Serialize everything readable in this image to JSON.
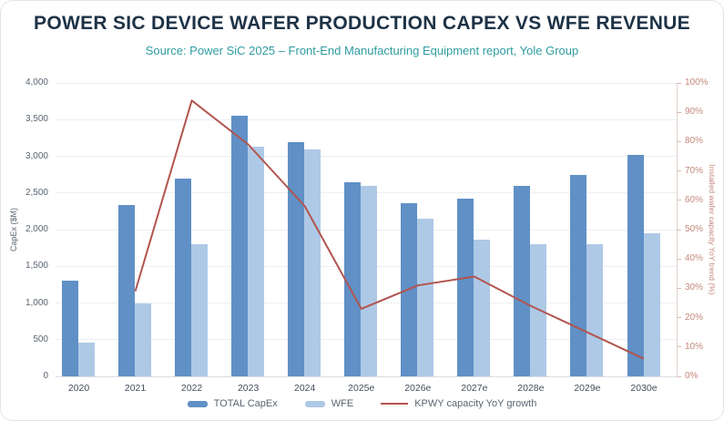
{
  "header": {
    "title": "POWER SIC DEVICE WAFER PRODUCTION CAPEX VS WFE REVENUE",
    "subtitle": "Source: Power SiC 2025 – Front-End Manufacturing Equipment report, Yole Group"
  },
  "colors": {
    "title_text": "#1d3245",
    "subtitle_text": "#2e9ca1",
    "total_capex_bar": "#6090c6",
    "wfe_bar": "#aec9e6",
    "growth_line": "#b2544e",
    "left_axis_text": "#5a6572",
    "right_axis_text": "#c4877b",
    "gridline": "#eceff3",
    "baseline": "#d9dde3"
  },
  "chart_data": {
    "type": "bar",
    "subtype": "combo bar + line, dual axis",
    "title": "POWER SIC DEVICE WAFER PRODUCTION CAPEX VS WFE REVENUE",
    "categories": [
      "2020",
      "2021",
      "2022",
      "2023",
      "2024",
      "2025e",
      "2026e",
      "2027e",
      "2028e",
      "2029e",
      "2030e"
    ],
    "series": [
      {
        "name": "TOTAL CapEx",
        "type": "bar",
        "axis": "left",
        "color": "#6090c6",
        "values": [
          1300,
          2330,
          2700,
          3550,
          3190,
          2645,
          2360,
          2420,
          2600,
          2745,
          3020
        ]
      },
      {
        "name": "WFE",
        "type": "bar",
        "axis": "left",
        "color": "#aec9e6",
        "values": [
          460,
          1000,
          1800,
          3130,
          3090,
          2600,
          2150,
          1865,
          1800,
          1800,
          1950
        ]
      },
      {
        "name": "KPWY capacity YoY growth",
        "type": "line",
        "axis": "right",
        "color": "#b2544e",
        "values": [
          null,
          29,
          94,
          79,
          58,
          23,
          31,
          34,
          24,
          15,
          6
        ]
      }
    ],
    "left_axis": {
      "label": "CapEx ($M)",
      "min": 0,
      "max": 4000,
      "step": 500,
      "ticks": [
        "0",
        "500",
        "1,000",
        "1,500",
        "2,000",
        "2,500",
        "3,000",
        "3,500",
        "4,000"
      ]
    },
    "right_axis": {
      "label": "Installed wafer capacity YoY trend (%)",
      "min": 0,
      "max": 100,
      "step": 10,
      "ticks": [
        "0%",
        "10%",
        "20%",
        "30%",
        "40%",
        "50%",
        "60%",
        "70%",
        "80%",
        "90%",
        "100%"
      ]
    },
    "grid": true,
    "legend_position": "bottom"
  },
  "legend": {
    "items": [
      {
        "label": "TOTAL CapEx",
        "swatch": "bar",
        "color": "#6090c6"
      },
      {
        "label": "WFE",
        "swatch": "bar",
        "color": "#aec9e6"
      },
      {
        "label": "KPWY capacity YoY growth",
        "swatch": "line",
        "color": "#b2544e"
      }
    ]
  }
}
